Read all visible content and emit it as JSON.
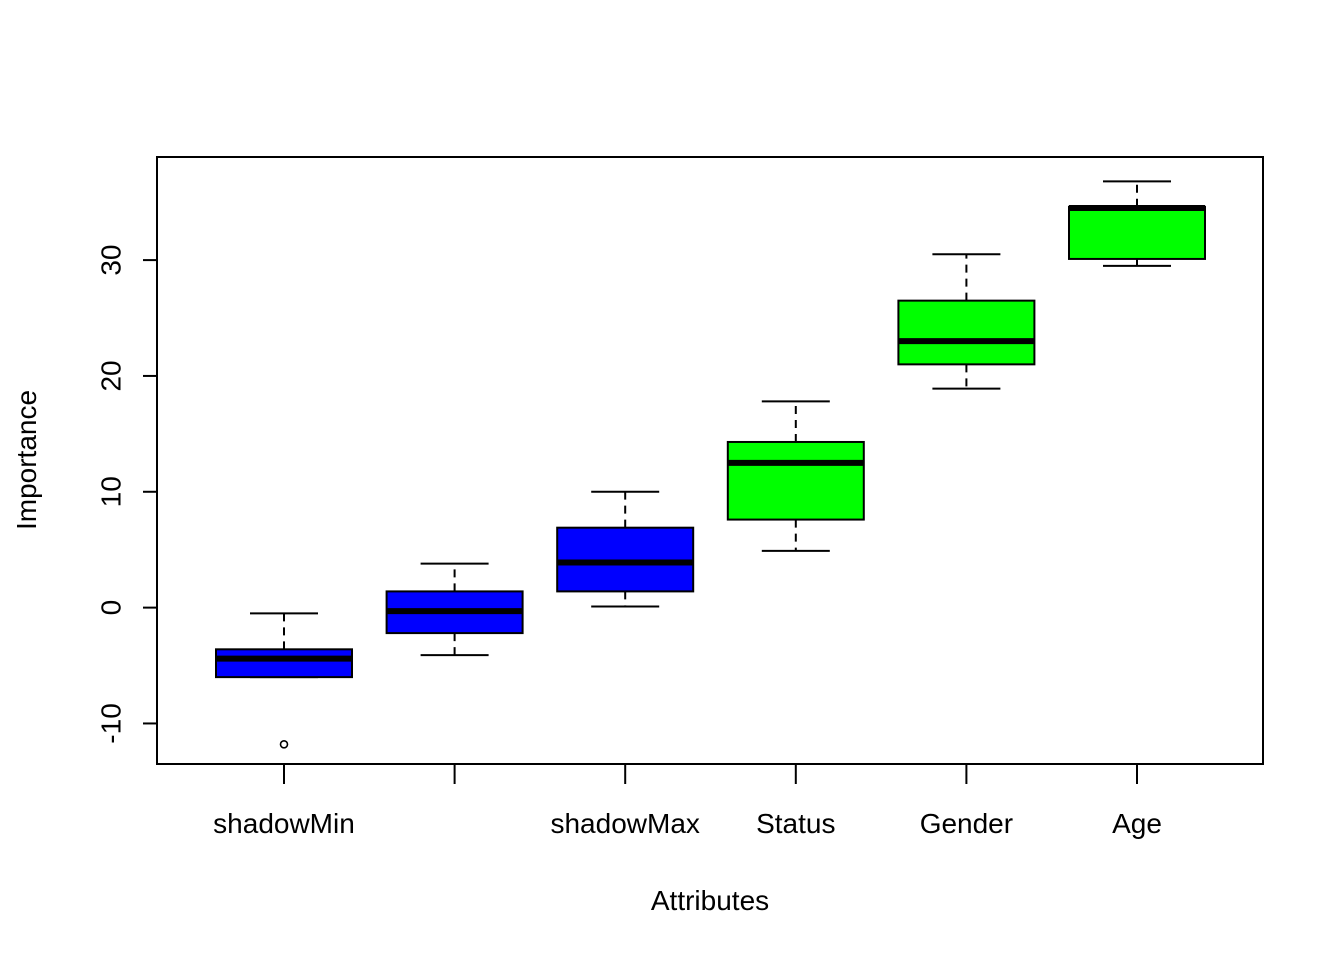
{
  "chart_data": {
    "type": "boxplot",
    "title": "",
    "xlabel": "Attributes",
    "ylabel": "Importance",
    "ylim": [
      -13.5,
      38.9
    ],
    "yticks": [
      -10,
      0,
      10,
      20,
      30
    ],
    "ytick_labels": [
      "-10",
      "0",
      "10",
      "20",
      "30"
    ],
    "grid": false,
    "categories": [
      "shadowMin",
      "",
      "shadowMax",
      "Status",
      "Gender",
      "Age"
    ],
    "boxes": [
      {
        "category": "shadowMin",
        "whisker_low": -6.0,
        "q1": -6.0,
        "median": -4.4,
        "q3": -3.6,
        "whisker_high": -0.5,
        "outliers": [
          -11.8
        ],
        "color": "#0000FF"
      },
      {
        "category": "",
        "whisker_low": -4.1,
        "q1": -2.2,
        "median": -0.3,
        "q3": 1.4,
        "whisker_high": 3.8,
        "outliers": [],
        "color": "#0000FF"
      },
      {
        "category": "shadowMax",
        "whisker_low": 0.1,
        "q1": 1.4,
        "median": 3.9,
        "q3": 6.9,
        "whisker_high": 10.0,
        "outliers": [],
        "color": "#0000FF"
      },
      {
        "category": "Status",
        "whisker_low": 4.9,
        "q1": 7.6,
        "median": 12.5,
        "q3": 14.3,
        "whisker_high": 17.8,
        "outliers": [],
        "color": "#00FF00"
      },
      {
        "category": "Gender",
        "whisker_low": 18.9,
        "q1": 21.0,
        "median": 23.0,
        "q3": 26.5,
        "whisker_high": 30.5,
        "outliers": [],
        "color": "#00FF00"
      },
      {
        "category": "Age",
        "whisker_low": 29.5,
        "q1": 30.1,
        "median": 34.5,
        "q3": 34.6,
        "whisker_high": 36.8,
        "outliers": [],
        "color": "#00FF00"
      }
    ]
  }
}
